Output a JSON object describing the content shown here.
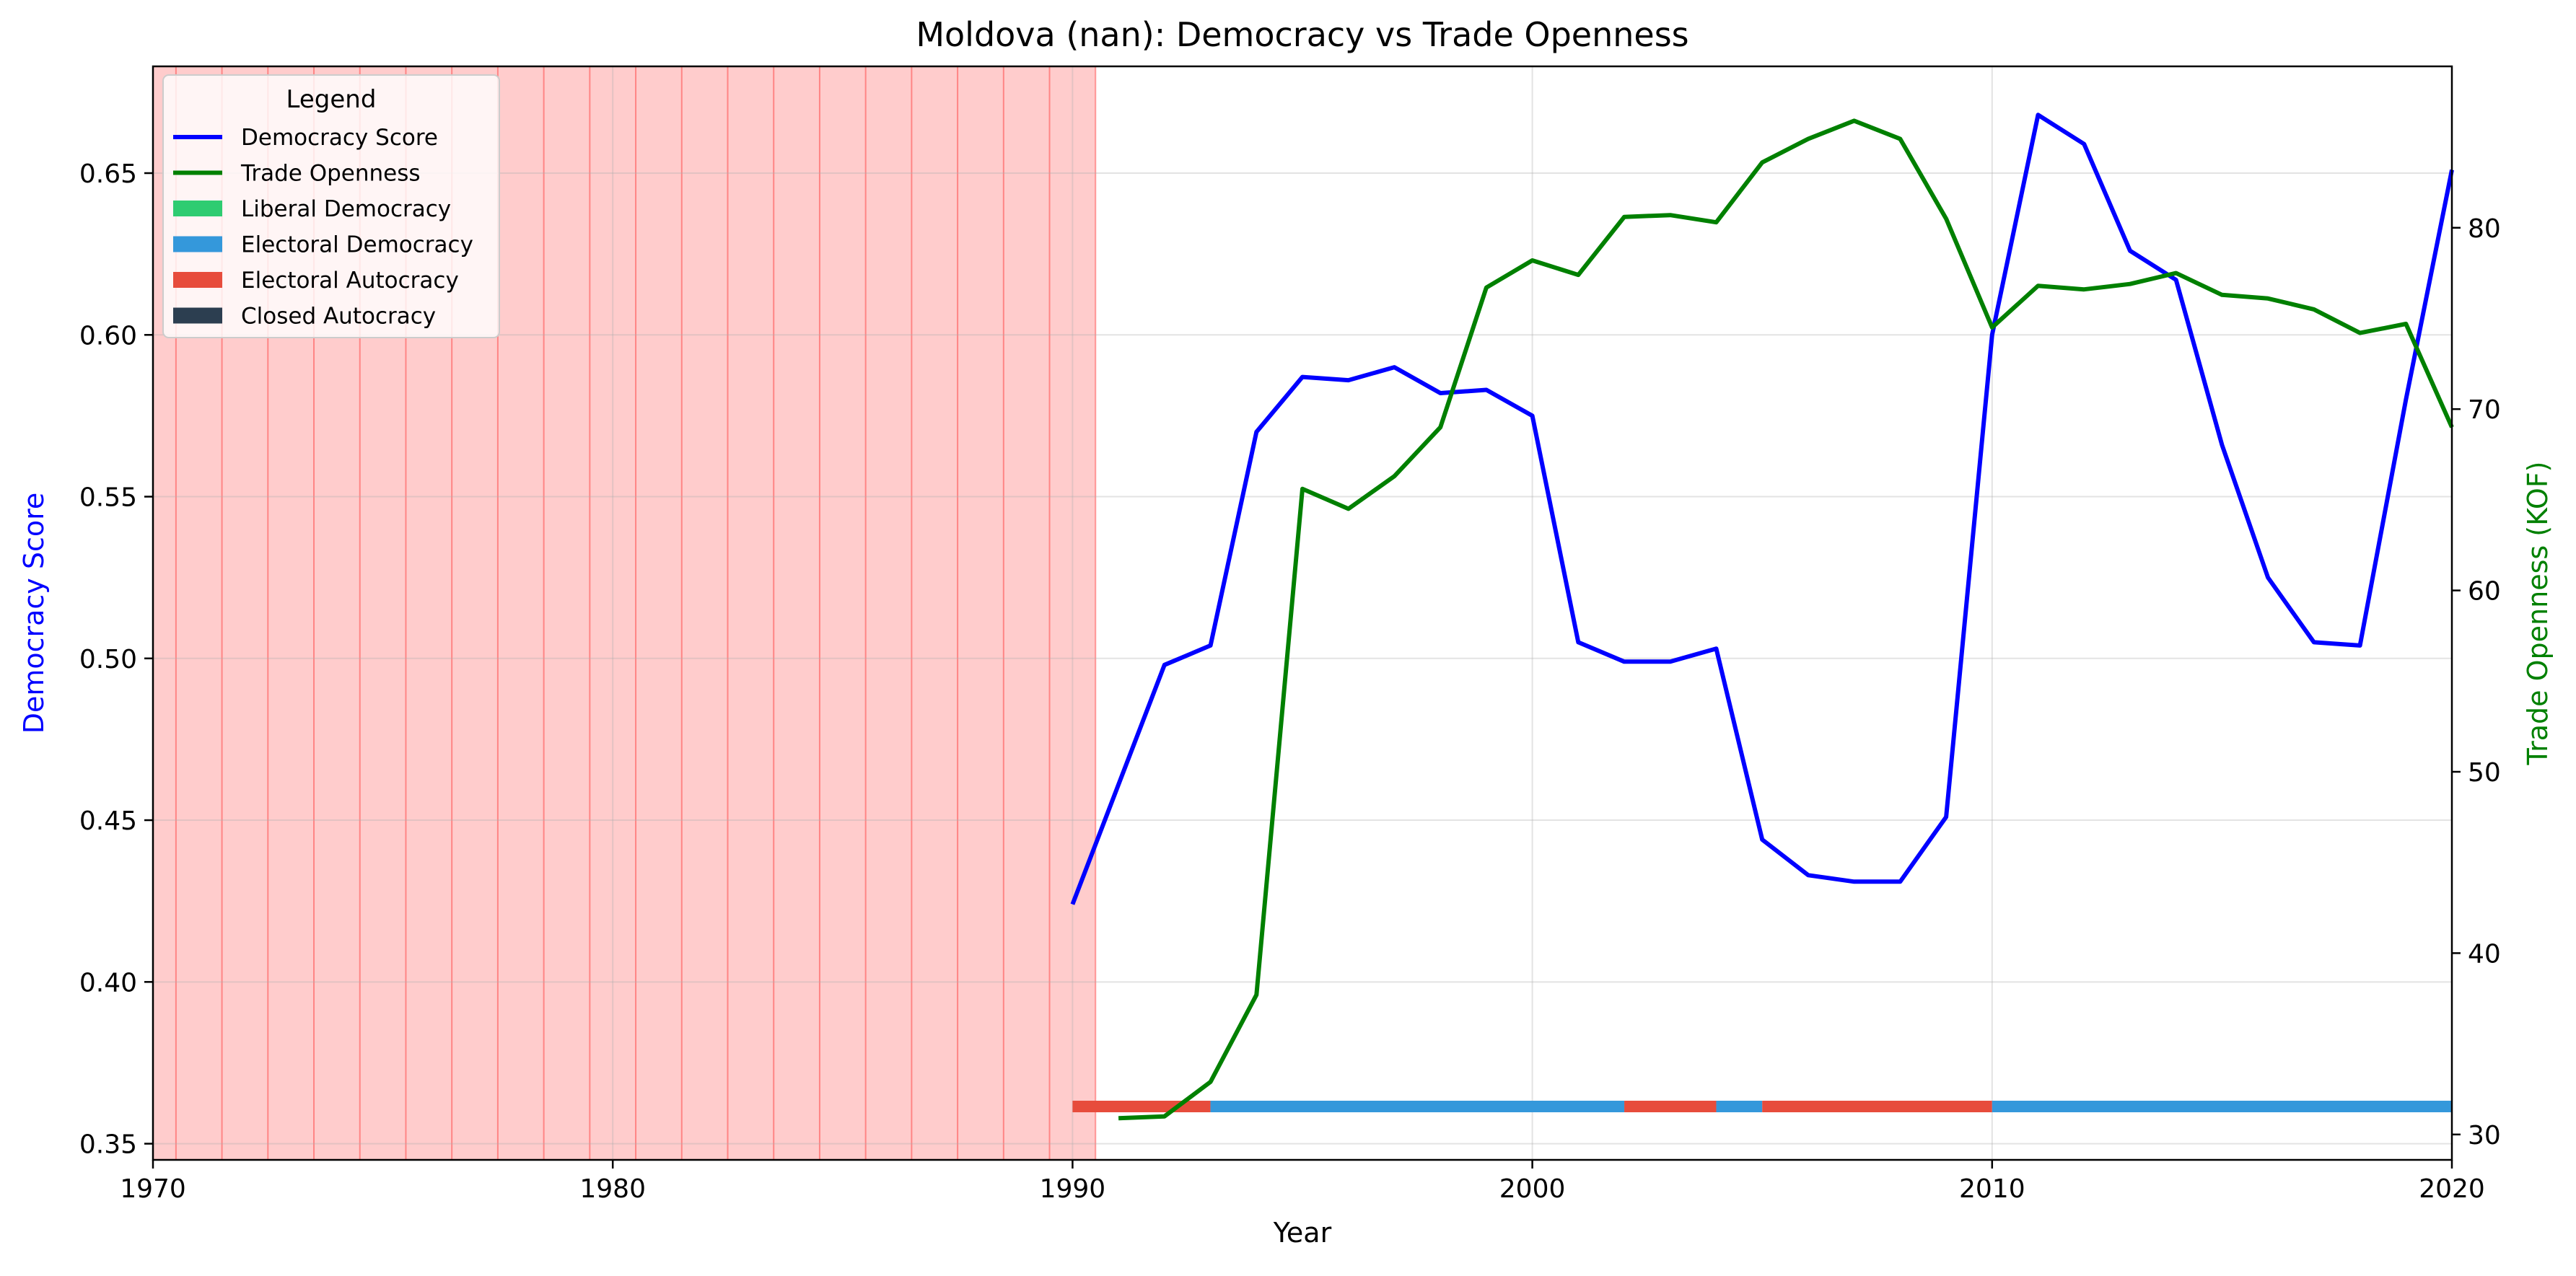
{
  "chart_data": {
    "type": "line",
    "title": "Moldova (nan): Democracy vs Trade Openness",
    "xlabel": "Year",
    "ylabel_left": "Democracy Score",
    "ylabel_right": "Trade Openness (KOF)",
    "xlim": [
      1970,
      2020
    ],
    "ylim_left": [
      0.345,
      0.683
    ],
    "ylim_right": [
      28.6,
      88.9
    ],
    "x_ticks": [
      1970,
      1980,
      1990,
      2000,
      2010,
      2020
    ],
    "y_ticks_left": [
      0.35,
      0.4,
      0.45,
      0.5,
      0.55,
      0.6,
      0.65
    ],
    "y_ticks_right": [
      30,
      40,
      50,
      60,
      70,
      80
    ],
    "grid": true,
    "legend": {
      "title": "Legend",
      "placement": "upper-left",
      "entries": [
        {
          "label": "Democracy Score",
          "kind": "line",
          "color": "#0000ff"
        },
        {
          "label": "Trade Openness",
          "kind": "line",
          "color": "#008000"
        },
        {
          "label": "Liberal Democracy",
          "kind": "patch",
          "color": "#2ecc71"
        },
        {
          "label": "Electoral Democracy",
          "kind": "patch",
          "color": "#3498db"
        },
        {
          "label": "Electoral Autocracy",
          "kind": "patch",
          "color": "#e74c3c"
        },
        {
          "label": "Closed Autocracy",
          "kind": "patch",
          "color": "#2c3e50"
        }
      ]
    },
    "shaded_region": {
      "from": 1969.5,
      "to": 1990.5,
      "color": "#ff0000",
      "yearly_lines": true
    },
    "series": [
      {
        "name": "Democracy Score",
        "axis": "left",
        "color": "#0000ff",
        "x": [
          1990,
          1991,
          1992,
          1993,
          1994,
          1995,
          1996,
          1997,
          1998,
          1999,
          2000,
          2001,
          2002,
          2003,
          2004,
          2005,
          2006,
          2007,
          2008,
          2009,
          2010,
          2011,
          2012,
          2013,
          2014,
          2015,
          2016,
          2017,
          2018,
          2019,
          2020
        ],
        "y": [
          0.424,
          0.461,
          0.498,
          0.504,
          0.57,
          0.587,
          0.586,
          0.59,
          0.582,
          0.583,
          0.575,
          0.505,
          0.499,
          0.499,
          0.503,
          0.444,
          0.433,
          0.431,
          0.431,
          0.451,
          0.6,
          0.668,
          0.659,
          0.626,
          0.617,
          0.566,
          0.525,
          0.505,
          0.504,
          0.58,
          0.651
        ]
      },
      {
        "name": "Trade Openness",
        "axis": "right",
        "color": "#008000",
        "x": [
          1991,
          1992,
          1993,
          1994,
          1995,
          1996,
          1997,
          1998,
          1999,
          2000,
          2001,
          2002,
          2003,
          2004,
          2005,
          2006,
          2007,
          2008,
          2009,
          2010,
          2011,
          2012,
          2013,
          2014,
          2015,
          2016,
          2017,
          2018,
          2019,
          2020
        ],
        "y": [
          30.9,
          31.0,
          32.9,
          37.7,
          65.6,
          64.5,
          66.3,
          69.0,
          76.7,
          78.2,
          77.4,
          80.6,
          80.7,
          80.3,
          83.6,
          84.9,
          85.9,
          84.9,
          80.5,
          74.5,
          76.8,
          76.6,
          76.9,
          77.5,
          76.3,
          76.1,
          75.5,
          74.2,
          74.7,
          69.0
        ]
      }
    ],
    "regime_bar": {
      "y_level": 0.3615,
      "segments": [
        {
          "from": 1990,
          "to": 1993,
          "regime": "Electoral Autocracy",
          "color": "#e74c3c"
        },
        {
          "from": 1993,
          "to": 2002,
          "regime": "Electoral Democracy",
          "color": "#3498db"
        },
        {
          "from": 2002,
          "to": 2004,
          "regime": "Electoral Autocracy",
          "color": "#e74c3c"
        },
        {
          "from": 2004,
          "to": 2005,
          "regime": "Electoral Democracy",
          "color": "#3498db"
        },
        {
          "from": 2005,
          "to": 2010,
          "regime": "Electoral Autocracy",
          "color": "#e74c3c"
        },
        {
          "from": 2010,
          "to": 2020,
          "regime": "Electoral Democracy",
          "color": "#3498db"
        }
      ]
    }
  }
}
